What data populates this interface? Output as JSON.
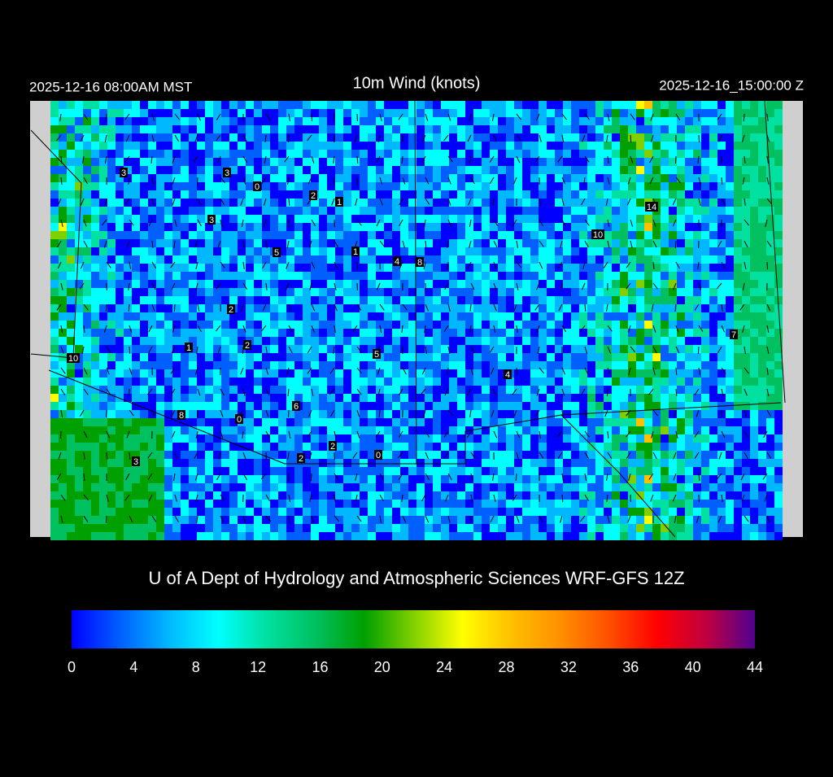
{
  "header": {
    "left": "2025-12-16 08:00AM MST",
    "title": "10m Wind (knots)",
    "right": "2025-12-16_15:00:00 Z"
  },
  "credit": "U of A Dept of Hydrology and Atmospheric Sciences WRF-GFS 12Z",
  "colorbar": {
    "lim": [
      0,
      44
    ],
    "ticks": [
      0,
      4,
      8,
      12,
      16,
      20,
      24,
      28,
      32,
      36,
      40,
      44
    ],
    "colors": [
      "#0000ff",
      "#0060ff",
      "#00b8ff",
      "#00ffff",
      "#00e0a0",
      "#00c060",
      "#00a000",
      "#80d000",
      "#ffff00",
      "#ffc000",
      "#ff9000",
      "#ff5000",
      "#ff0000",
      "#c00040",
      "#500090"
    ]
  },
  "stations": [
    3,
    3,
    0,
    2,
    1,
    3,
    5,
    1,
    4,
    8,
    14,
    10,
    2,
    7,
    1,
    2,
    10,
    5,
    4,
    6,
    8,
    0,
    2,
    2,
    0,
    3
  ]
}
